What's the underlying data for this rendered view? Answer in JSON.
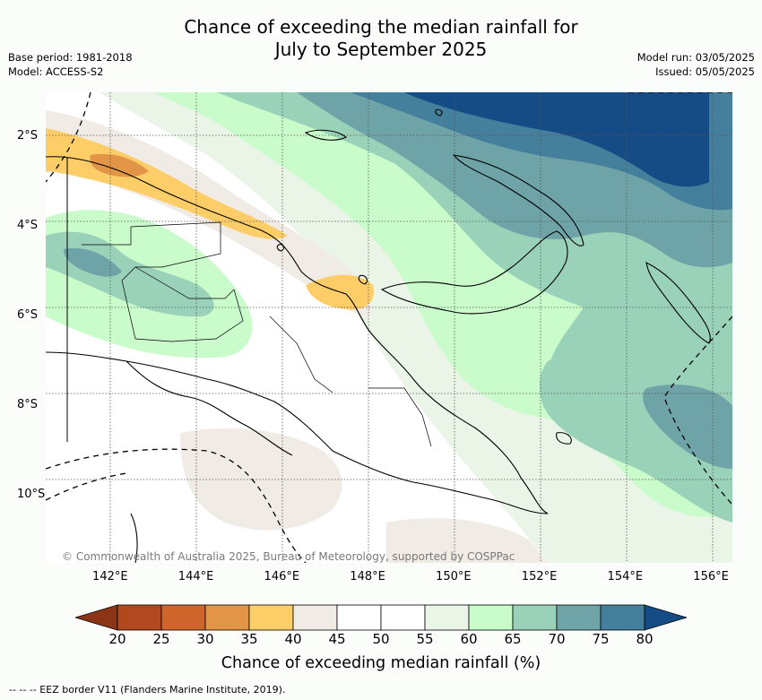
{
  "title": {
    "line1": "Chance of exceeding the median rainfall for",
    "line2": "July to September 2025"
  },
  "meta": {
    "base_period": "Base period: 1981-2018",
    "model": "Model: ACCESS-S2",
    "model_run": "Model run: 03/05/2025",
    "issued": "Issued: 05/05/2025"
  },
  "map": {
    "copyright": "© Commonwealth of Australia 2025, Bureau of Meteorology, supported by COSPPac",
    "lat_labels": [
      "2°S",
      "4°S",
      "6°S",
      "8°S",
      "10°S"
    ],
    "lat_values": [
      -2,
      -4,
      -6,
      -8,
      -10
    ],
    "lon_labels": [
      "142°E",
      "144°E",
      "146°E",
      "148°E",
      "150°E",
      "152°E",
      "154°E",
      "156°E"
    ],
    "lon_values": [
      142,
      144,
      146,
      148,
      150,
      152,
      154,
      156
    ],
    "extent": {
      "lon_min": 140.5,
      "lon_max": 156.5,
      "lat_min": -11.5,
      "lat_max": -1.0
    }
  },
  "colorbar": {
    "ticks": [
      "20",
      "25",
      "30",
      "35",
      "40",
      "45",
      "50",
      "55",
      "60",
      "65",
      "70",
      "75",
      "80"
    ],
    "colors": [
      "#8b3416",
      "#b2481d",
      "#d0652c",
      "#e39547",
      "#fdcd68",
      "#f1ebe6",
      "#ffffff",
      "#ffffff",
      "#eaf5e8",
      "#c9fbcb",
      "#9ad2b9",
      "#6ea4a7",
      "#447f9b",
      "#154c85"
    ],
    "label": "Chance of exceeding median rainfall (%)"
  },
  "legend": {
    "eez": "--  --  -- EEZ border V11 (Flanders Marine Institute, 2019)."
  }
}
